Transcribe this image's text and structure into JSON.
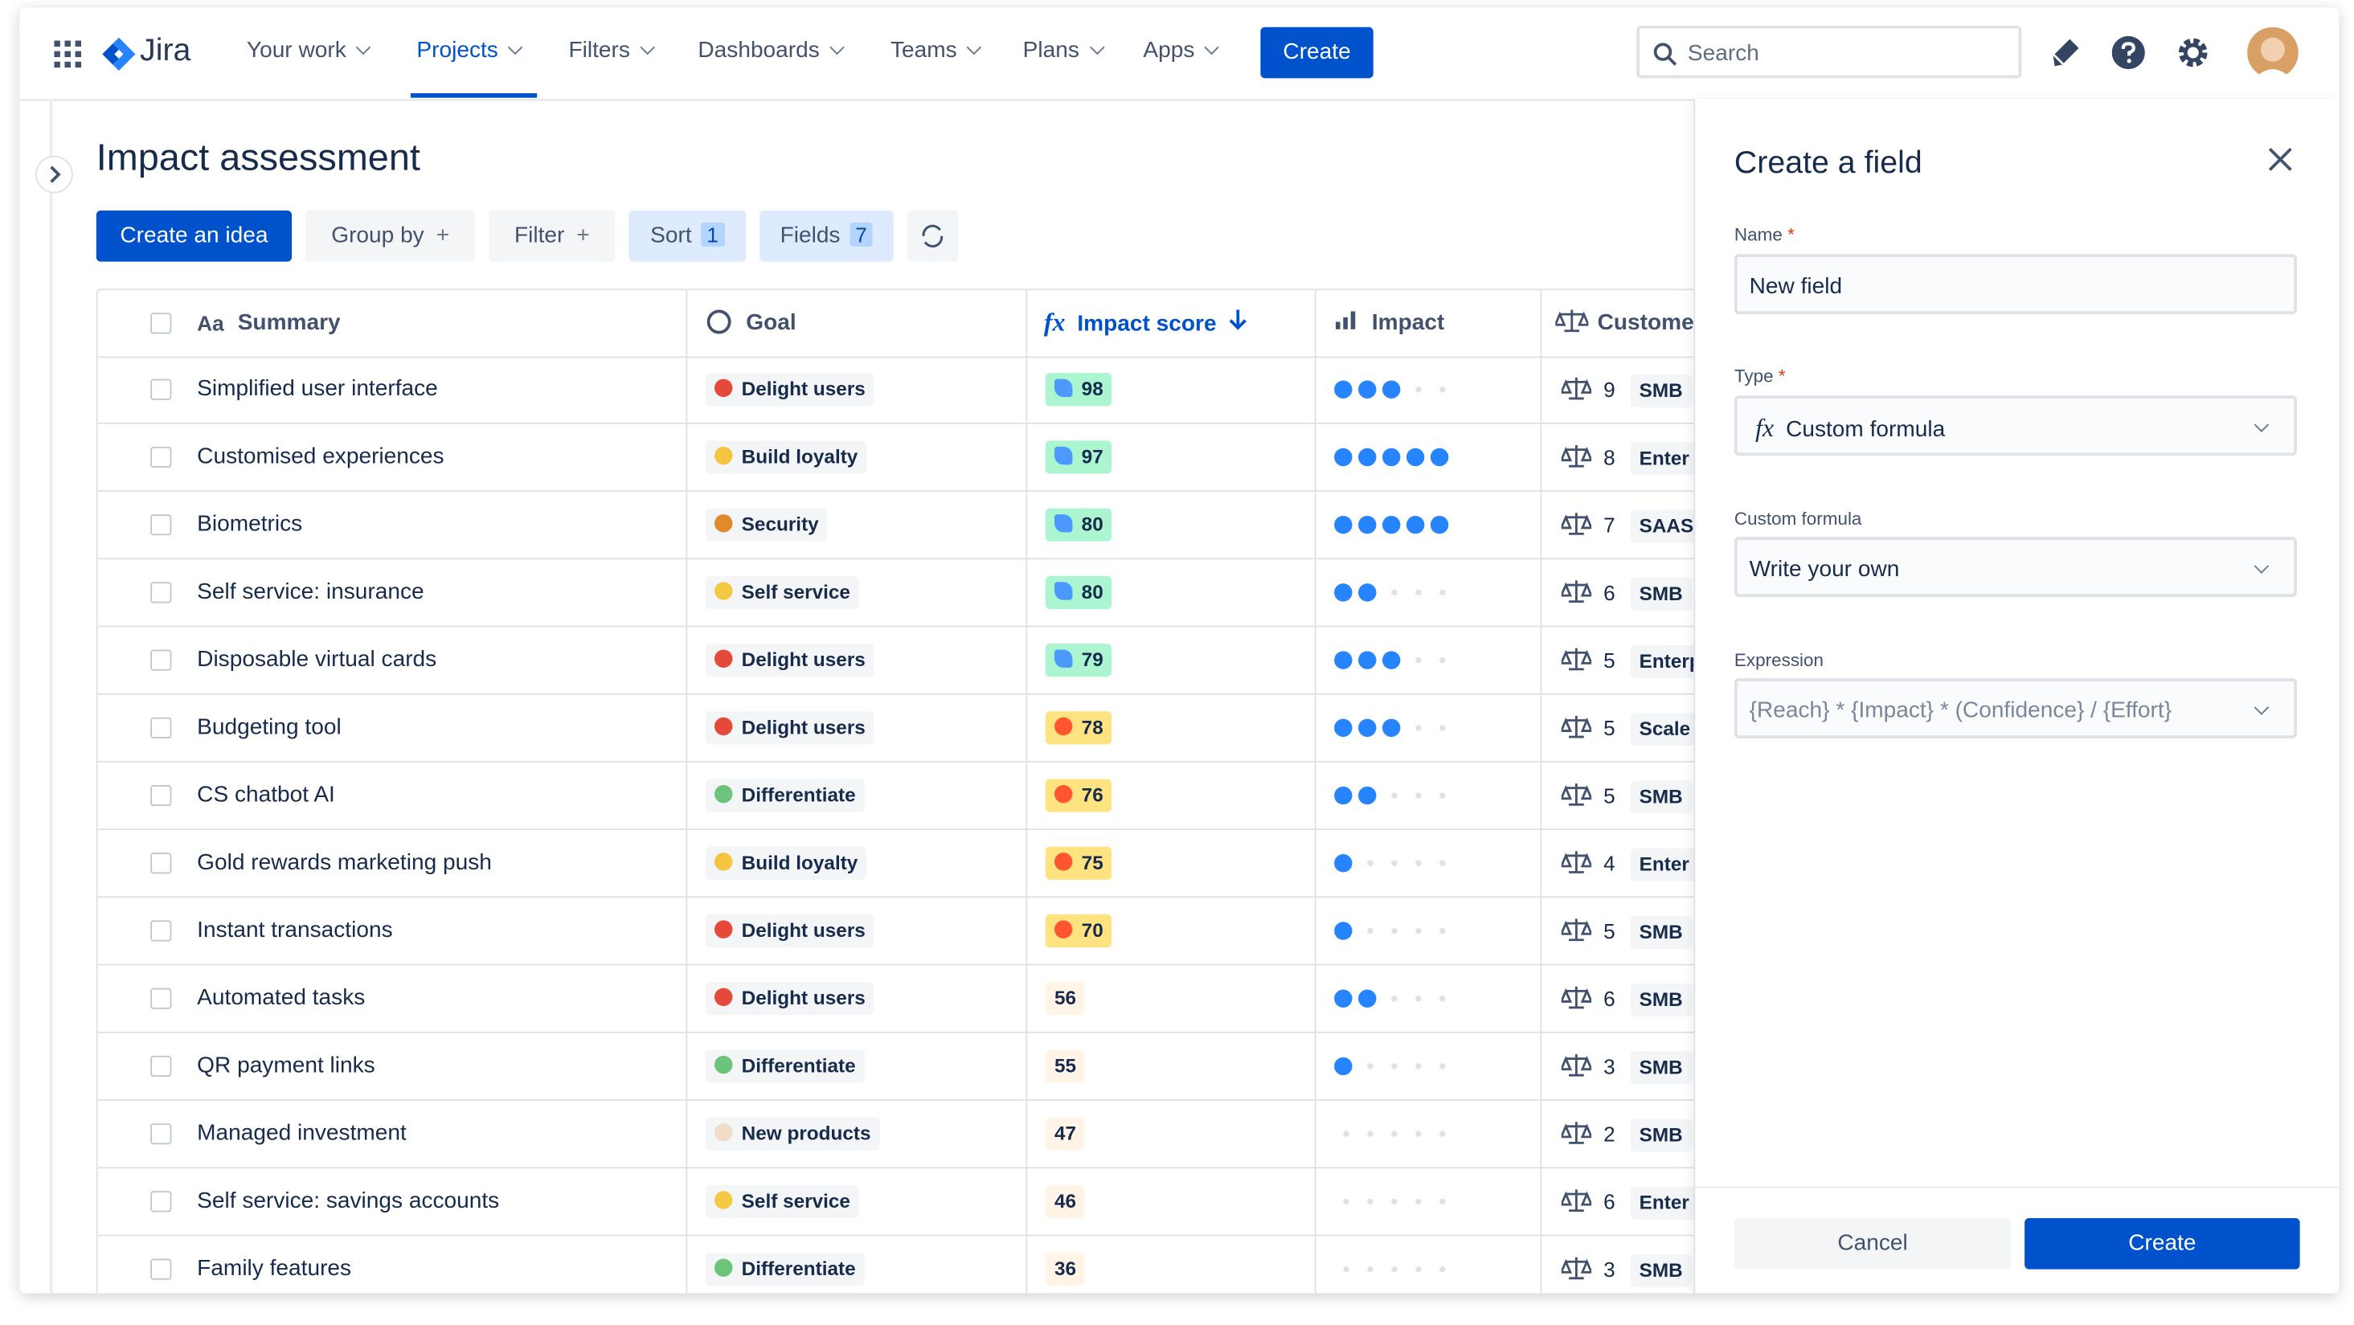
{
  "nav": {
    "product": "Jira",
    "items": [
      "Your work",
      "Projects",
      "Filters",
      "Dashboards",
      "Teams",
      "Plans",
      "Apps"
    ],
    "create": "Create",
    "search": "Search"
  },
  "page": {
    "title": "Impact assessment",
    "create_idea": "Create an idea",
    "group_by": "Group by",
    "filter": "Filter",
    "sort": "Sort",
    "sort_count": 1,
    "fields": "Fields",
    "fields_count": 7
  },
  "table": {
    "summary_icon": "Aa",
    "score_icon": "fx",
    "headers": [
      "Summary",
      "Goal",
      "Impact score",
      "Impact",
      "Custome"
    ],
    "goals": [
      {
        "name": "Delight users",
        "color": "#e5493a"
      },
      {
        "name": "Build loyalty",
        "color": "#f5c542"
      },
      {
        "name": "Security",
        "color": "#e08a2c"
      },
      {
        "name": "Self service",
        "color": "#f6c945"
      },
      {
        "name": "Differentiate",
        "color": "#6cc47a"
      },
      {
        "name": "New products",
        "color": "#f1dcc8"
      }
    ],
    "rows": [
      {
        "summary": "Simplified user interface",
        "goal": 0,
        "score": 98,
        "impact": 3,
        "customers": 9,
        "segment": "SMB"
      },
      {
        "summary": "Customised experiences",
        "goal": 1,
        "score": 97,
        "impact": 5,
        "customers": 8,
        "segment": "Enter"
      },
      {
        "summary": "Biometrics",
        "goal": 2,
        "score": 80,
        "impact": 5,
        "customers": 7,
        "segment": "SAAS"
      },
      {
        "summary": "Self service: insurance",
        "goal": 3,
        "score": 80,
        "impact": 2,
        "customers": 6,
        "segment": "SMB"
      },
      {
        "summary": "Disposable virtual cards",
        "goal": 0,
        "score": 79,
        "impact": 3,
        "customers": 5,
        "segment": "Enterp"
      },
      {
        "summary": "Budgeting tool",
        "goal": 0,
        "score": 78,
        "impact": 3,
        "customers": 5,
        "segment": "Scale"
      },
      {
        "summary": "CS chatbot AI",
        "goal": 4,
        "score": 76,
        "impact": 2,
        "customers": 5,
        "segment": "SMB"
      },
      {
        "summary": "Gold rewards marketing push",
        "goal": 1,
        "score": 75,
        "impact": 1,
        "customers": 4,
        "segment": "Enter"
      },
      {
        "summary": "Instant transactions",
        "goal": 0,
        "score": 70,
        "impact": 1,
        "customers": 5,
        "segment": "SMB"
      },
      {
        "summary": "Automated tasks",
        "goal": 0,
        "score": 56,
        "impact": 2,
        "customers": 6,
        "segment": "SMB"
      },
      {
        "summary": "QR payment links",
        "goal": 4,
        "score": 55,
        "impact": 1,
        "customers": 3,
        "segment": "SMB"
      },
      {
        "summary": "Managed investment",
        "goal": 5,
        "score": 47,
        "impact": 0,
        "customers": 2,
        "segment": "SMB"
      },
      {
        "summary": "Self service: savings accounts",
        "goal": 3,
        "score": 46,
        "impact": 0,
        "customers": 6,
        "segment": "Enter"
      },
      {
        "summary": "Family features",
        "goal": 4,
        "score": 36,
        "impact": 0,
        "customers": 3,
        "segment": "SMB"
      }
    ]
  },
  "panel": {
    "title": "Create a field",
    "required_mark": "*",
    "name_label": "Name",
    "name_value": "New field",
    "type_label": "Type",
    "type_icon": "fx",
    "type_value": "Custom formula",
    "formula_label": "Custom formula",
    "formula_value": "Write your own",
    "expression_label": "Expression",
    "expression_value": "{Reach} * {Impact} * (Confidence} / {Effort}",
    "cancel": "Cancel",
    "create": "Create"
  }
}
